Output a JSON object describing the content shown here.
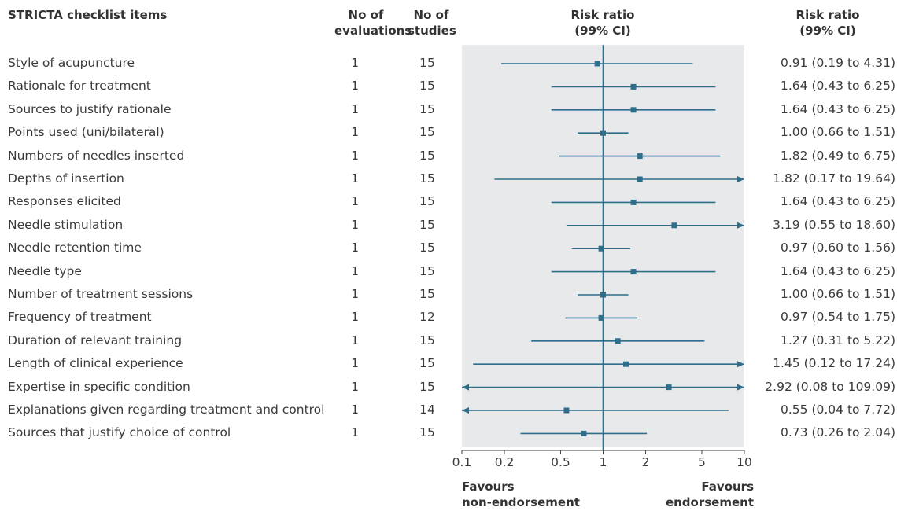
{
  "headers": {
    "items": "STRICTA checklist items",
    "evaluations": [
      "No of",
      "evaluations"
    ],
    "studies": [
      "No of",
      "studies"
    ],
    "rr_plot": [
      "Risk ratio",
      "(99% CI)"
    ],
    "rr_text": [
      "Risk ratio",
      "(99% CI)"
    ]
  },
  "favours": {
    "left": [
      "Favours",
      "non-endorsement"
    ],
    "right": [
      "Favours",
      "endorsement"
    ]
  },
  "colors": {
    "marker": "#2e6e8a",
    "panel": "#e8e9eb",
    "axis": "#444444"
  },
  "chart_data": {
    "type": "forest",
    "x_scale": "log",
    "xlim": [
      0.1,
      10
    ],
    "xticks": [
      0.1,
      0.2,
      0.5,
      1,
      2,
      5,
      10
    ],
    "xtick_labels": [
      "0.1",
      "0.2",
      "0.5",
      "1",
      "2",
      "5",
      "10"
    ],
    "reference_line": 1,
    "rows": [
      {
        "label": "Style of acupuncture",
        "evaluations": "1",
        "studies": "15",
        "rr": 0.91,
        "lo": 0.19,
        "hi": 4.31,
        "text": "0.91 (0.19 to 4.31)"
      },
      {
        "label": "Rationale for treatment",
        "evaluations": "1",
        "studies": "15",
        "rr": 1.64,
        "lo": 0.43,
        "hi": 6.25,
        "text": "1.64 (0.43 to 6.25)"
      },
      {
        "label": "Sources to justify rationale",
        "evaluations": "1",
        "studies": "15",
        "rr": 1.64,
        "lo": 0.43,
        "hi": 6.25,
        "text": "1.64 (0.43 to 6.25)"
      },
      {
        "label": "Points used (uni/bilateral)",
        "evaluations": "1",
        "studies": "15",
        "rr": 1.0,
        "lo": 0.66,
        "hi": 1.51,
        "text": "1.00 (0.66 to 1.51)"
      },
      {
        "label": "Numbers of needles inserted",
        "evaluations": "1",
        "studies": "15",
        "rr": 1.82,
        "lo": 0.49,
        "hi": 6.75,
        "text": "1.82 (0.49 to 6.75)"
      },
      {
        "label": "Depths of insertion",
        "evaluations": "1",
        "studies": "15",
        "rr": 1.82,
        "lo": 0.17,
        "hi": 19.64,
        "text": "1.82 (0.17 to 19.64)"
      },
      {
        "label": "Responses elicited",
        "evaluations": "1",
        "studies": "15",
        "rr": 1.64,
        "lo": 0.43,
        "hi": 6.25,
        "text": "1.64 (0.43 to 6.25)"
      },
      {
        "label": "Needle stimulation",
        "evaluations": "1",
        "studies": "15",
        "rr": 3.19,
        "lo": 0.55,
        "hi": 18.6,
        "text": "3.19 (0.55 to 18.60)"
      },
      {
        "label": "Needle retention time",
        "evaluations": "1",
        "studies": "15",
        "rr": 0.97,
        "lo": 0.6,
        "hi": 1.56,
        "text": "0.97 (0.60 to 1.56)"
      },
      {
        "label": "Needle type",
        "evaluations": "1",
        "studies": "15",
        "rr": 1.64,
        "lo": 0.43,
        "hi": 6.25,
        "text": "1.64 (0.43 to 6.25)"
      },
      {
        "label": "Number of treatment sessions",
        "evaluations": "1",
        "studies": "15",
        "rr": 1.0,
        "lo": 0.66,
        "hi": 1.51,
        "text": "1.00 (0.66 to 1.51)"
      },
      {
        "label": "Frequency of treatment",
        "evaluations": "1",
        "studies": "12",
        "rr": 0.97,
        "lo": 0.54,
        "hi": 1.75,
        "text": "0.97 (0.54 to 1.75)"
      },
      {
        "label": "Duration of relevant training",
        "evaluations": "1",
        "studies": "15",
        "rr": 1.27,
        "lo": 0.31,
        "hi": 5.22,
        "text": "1.27 (0.31 to 5.22)"
      },
      {
        "label": "Length of clinical experience",
        "evaluations": "1",
        "studies": "15",
        "rr": 1.45,
        "lo": 0.12,
        "hi": 17.24,
        "text": "1.45 (0.12 to 17.24)"
      },
      {
        "label": "Expertise in specific condition",
        "evaluations": "1",
        "studies": "15",
        "rr": 2.92,
        "lo": 0.08,
        "hi": 109.09,
        "text": "2.92 (0.08 to 109.09)"
      },
      {
        "label": "Explanations given regarding treatment and control",
        "evaluations": "1",
        "studies": "14",
        "rr": 0.55,
        "lo": 0.04,
        "hi": 7.72,
        "text": "0.55 (0.04 to 7.72)"
      },
      {
        "label": "Sources that justify choice of control",
        "evaluations": "1",
        "studies": "15",
        "rr": 0.73,
        "lo": 0.26,
        "hi": 2.04,
        "text": "0.73 (0.26 to 2.04)"
      }
    ]
  }
}
